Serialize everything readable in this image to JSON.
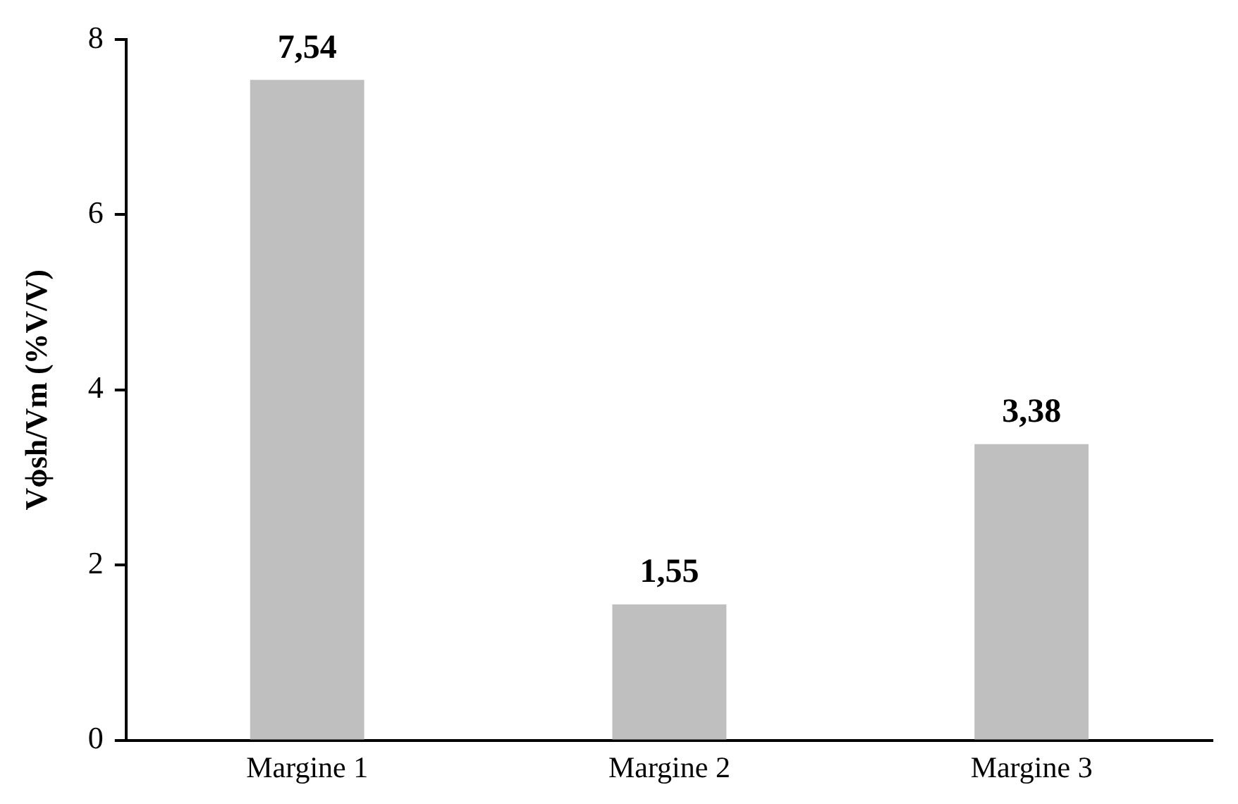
{
  "chart_data": {
    "type": "bar",
    "ylabel": "Vϕsh/Vm (%V/V)",
    "categories": [
      "Margine 1",
      "Margine 2",
      "Margine 3"
    ],
    "values": [
      7.54,
      1.55,
      3.38
    ],
    "color": "#bfbfbf",
    "value_labels": [
      "7,54",
      "1,55",
      "3,38"
    ],
    "ylim": [
      0,
      8
    ],
    "yticks": [
      0,
      2,
      4,
      6,
      8
    ],
    "grid": false,
    "legend": false
  }
}
